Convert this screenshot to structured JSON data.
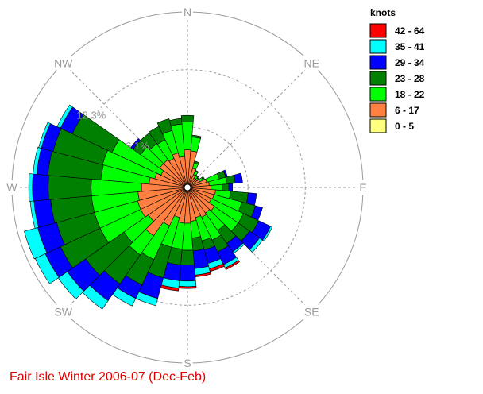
{
  "chart_data": {
    "type": "wind-rose",
    "title": "Fair Isle Winter 2006-07 (Dec-Feb)",
    "legend_title": "knots",
    "ring_labels": [
      "6.1%",
      "12.3%"
    ],
    "ring_values": [
      6.15,
      12.3
    ],
    "max_value": 18.5,
    "direction_labels": [
      {
        "label": "N",
        "angle": 0
      },
      {
        "label": "NE",
        "angle": 45
      },
      {
        "label": "E",
        "angle": 90
      },
      {
        "label": "SE",
        "angle": 135
      },
      {
        "label": "S",
        "angle": 180
      },
      {
        "label": "SW",
        "angle": 225
      },
      {
        "label": "W",
        "angle": 270
      },
      {
        "label": "NW",
        "angle": 315
      }
    ],
    "speed_bins": [
      {
        "label": "0 - 5",
        "color": "#ffff80"
      },
      {
        "label": "6 - 17",
        "color": "#ff8040"
      },
      {
        "label": "18 - 22",
        "color": "#00ff00"
      },
      {
        "label": "23 - 28",
        "color": "#008000"
      },
      {
        "label": "29 - 34",
        "color": "#0000ff"
      },
      {
        "label": "35 - 41",
        "color": "#00ffff"
      },
      {
        "label": "42 - 64",
        "color": "#ff0000"
      }
    ],
    "legend_order": [
      "42 - 64",
      "35 - 41",
      "29 - 34",
      "23 - 28",
      "18 - 22",
      "6 - 17",
      "0 - 5"
    ],
    "sectors": [
      {
        "dir": 0,
        "cum": [
          0.0,
          3.7,
          6.7,
          7.4,
          7.4,
          7.4,
          7.4
        ]
      },
      {
        "dir": 10,
        "cum": [
          0.0,
          3.6,
          5.1,
          5.3,
          5.3,
          5.3,
          5.3
        ]
      },
      {
        "dir": 20,
        "cum": [
          0.0,
          1.8,
          2.4,
          2.6,
          2.6,
          2.6,
          2.6
        ]
      },
      {
        "dir": 30,
        "cum": [
          0.0,
          1.2,
          1.6,
          1.7,
          1.7,
          1.7,
          1.7
        ]
      },
      {
        "dir": 40,
        "cum": [
          0.0,
          0.9,
          1.2,
          1.3,
          1.3,
          1.3,
          1.3
        ]
      },
      {
        "dir": 50,
        "cum": [
          0.0,
          0.9,
          1.1,
          1.2,
          1.2,
          1.2,
          1.2
        ]
      },
      {
        "dir": 60,
        "cum": [
          0.0,
          1.1,
          1.5,
          1.7,
          1.7,
          1.7,
          1.7
        ]
      },
      {
        "dir": 70,
        "cum": [
          0.0,
          1.8,
          3.2,
          3.9,
          4.1,
          4.1,
          4.1
        ]
      },
      {
        "dir": 80,
        "cum": [
          0.0,
          2.0,
          3.9,
          4.8,
          5.6,
          5.6,
          5.6
        ]
      },
      {
        "dir": 90,
        "cum": [
          0.0,
          2.2,
          3.4,
          4.1,
          4.5,
          4.5,
          4.5
        ]
      },
      {
        "dir": 100,
        "cum": [
          0.0,
          2.7,
          4.3,
          6.2,
          7.1,
          7.1,
          7.1
        ]
      },
      {
        "dir": 110,
        "cum": [
          0.0,
          2.6,
          5.7,
          7.2,
          8.0,
          8.0,
          8.0
        ]
      },
      {
        "dir": 120,
        "cum": [
          0.0,
          2.5,
          6.3,
          8.1,
          9.5,
          9.7,
          9.7
        ]
      },
      {
        "dir": 130,
        "cum": [
          0.0,
          3.2,
          6.3,
          7.8,
          9.1,
          9.5,
          9.5
        ]
      },
      {
        "dir": 140,
        "cum": [
          0.0,
          3.0,
          5.3,
          7.0,
          8.1,
          8.3,
          8.3
        ]
      },
      {
        "dir": 150,
        "cum": [
          0.0,
          3.2,
          5.9,
          7.3,
          8.8,
          9.2,
          9.4
        ]
      },
      {
        "dir": 160,
        "cum": [
          0.0,
          3.0,
          5.6,
          6.6,
          8.1,
          8.7,
          9.0
        ]
      },
      {
        "dir": 170,
        "cum": [
          0.0,
          3.3,
          5.1,
          6.5,
          8.4,
          9.1,
          9.3
        ]
      },
      {
        "dir": 180,
        "cum": [
          0.0,
          3.5,
          6.4,
          8.0,
          9.7,
          10.3,
          10.5
        ]
      },
      {
        "dir": 190,
        "cum": [
          0.0,
          3.5,
          6.3,
          8.0,
          9.7,
          10.5,
          10.8
        ]
      },
      {
        "dir": 200,
        "cum": [
          0.0,
          3.0,
          6.3,
          9.7,
          12.0,
          12.8,
          12.8
        ]
      },
      {
        "dir": 210,
        "cum": [
          0.0,
          4.2,
          8.2,
          11.2,
          12.8,
          13.7,
          13.7
        ]
      },
      {
        "dir": 220,
        "cum": [
          0.0,
          6.0,
          8.5,
          12.3,
          14.5,
          15.6,
          15.6
        ]
      },
      {
        "dir": 230,
        "cum": [
          0.0,
          4.8,
          8.0,
          13.0,
          15.4,
          16.6,
          16.6
        ]
      },
      {
        "dir": 240,
        "cum": [
          0.0,
          5.2,
          10.0,
          14.7,
          16.5,
          17.7,
          17.7
        ]
      },
      {
        "dir": 250,
        "cum": [
          0.0,
          5.2,
          10.0,
          14.2,
          16.3,
          17.8,
          17.8
        ]
      },
      {
        "dir": 260,
        "cum": [
          0.0,
          5.0,
          10.0,
          14.4,
          16.2,
          16.6,
          16.6
        ]
      },
      {
        "dir": 270,
        "cum": [
          0.0,
          4.6,
          10.0,
          14.6,
          16.3,
          16.7,
          16.7
        ]
      },
      {
        "dir": 280,
        "cum": [
          0.0,
          3.8,
          9.0,
          14.7,
          15.9,
          16.3,
          16.3
        ]
      },
      {
        "dir": 290,
        "cum": [
          0.0,
          3.3,
          9.1,
          14.6,
          15.9,
          16.2,
          16.2
        ]
      },
      {
        "dir": 300,
        "cum": [
          0.0,
          2.8,
          8.6,
          13.3,
          14.7,
          15.1,
          15.1
        ]
      },
      {
        "dir": 310,
        "cum": [
          0.0,
          3.3,
          5.8,
          6.8,
          7.1,
          7.1,
          7.1
        ]
      },
      {
        "dir": 320,
        "cum": [
          0.0,
          3.3,
          5.4,
          6.8,
          6.8,
          6.8,
          6.8
        ]
      },
      {
        "dir": 330,
        "cum": [
          0.0,
          3.1,
          5.3,
          6.9,
          6.9,
          6.9,
          6.9
        ]
      },
      {
        "dir": 340,
        "cum": [
          0.0,
          3.5,
          6.0,
          7.3,
          7.3,
          7.3,
          7.3
        ]
      },
      {
        "dir": 350,
        "cum": [
          0.0,
          3.0,
          6.5,
          7.1,
          7.1,
          7.1,
          7.1
        ]
      }
    ]
  }
}
